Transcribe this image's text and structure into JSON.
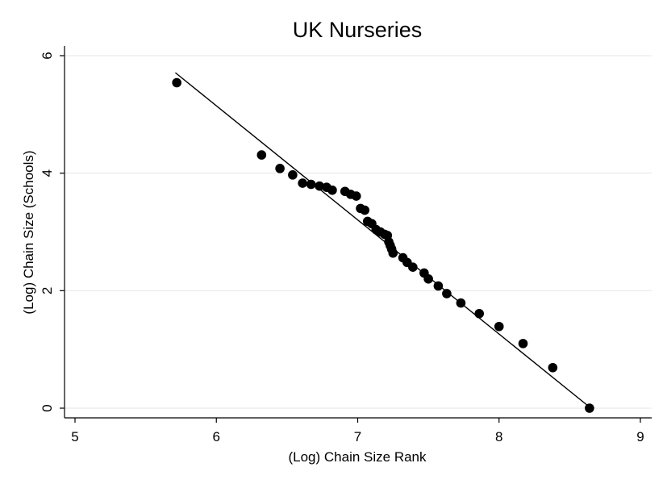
{
  "chart_data": {
    "type": "scatter",
    "title": "UK Nurseries",
    "xlabel": "(Log) Chain Size Rank",
    "ylabel": "(Log) Chain Size (Schools)",
    "xlim": [
      5,
      9
    ],
    "ylim": [
      0,
      6
    ],
    "xticks": [
      5,
      6,
      7,
      8,
      9
    ],
    "yticks": [
      0,
      2,
      4,
      6
    ],
    "grid": "horizontal",
    "legend": "none",
    "colors": {
      "points": "#000000",
      "fit_line": "#000000",
      "grid": "#e6e6e6"
    },
    "fit_line": {
      "x": [
        5.71,
        8.65
      ],
      "y": [
        5.71,
        0.0
      ]
    },
    "points": [
      {
        "x": 5.72,
        "y": 5.54
      },
      {
        "x": 6.32,
        "y": 4.31
      },
      {
        "x": 6.45,
        "y": 4.08
      },
      {
        "x": 6.54,
        "y": 3.97
      },
      {
        "x": 6.61,
        "y": 3.83
      },
      {
        "x": 6.67,
        "y": 3.81
      },
      {
        "x": 6.73,
        "y": 3.78
      },
      {
        "x": 6.78,
        "y": 3.76
      },
      {
        "x": 6.82,
        "y": 3.71
      },
      {
        "x": 6.91,
        "y": 3.69
      },
      {
        "x": 6.95,
        "y": 3.64
      },
      {
        "x": 6.99,
        "y": 3.61
      },
      {
        "x": 7.02,
        "y": 3.4
      },
      {
        "x": 7.05,
        "y": 3.37
      },
      {
        "x": 7.07,
        "y": 3.18
      },
      {
        "x": 7.1,
        "y": 3.14
      },
      {
        "x": 7.13,
        "y": 3.04
      },
      {
        "x": 7.16,
        "y": 3.0
      },
      {
        "x": 7.19,
        "y": 2.96
      },
      {
        "x": 7.21,
        "y": 2.94
      },
      {
        "x": 7.22,
        "y": 2.83
      },
      {
        "x": 7.23,
        "y": 2.77
      },
      {
        "x": 7.24,
        "y": 2.71
      },
      {
        "x": 7.25,
        "y": 2.64
      },
      {
        "x": 7.32,
        "y": 2.56
      },
      {
        "x": 7.35,
        "y": 2.48
      },
      {
        "x": 7.39,
        "y": 2.4
      },
      {
        "x": 7.47,
        "y": 2.3
      },
      {
        "x": 7.5,
        "y": 2.2
      },
      {
        "x": 7.57,
        "y": 2.08
      },
      {
        "x": 7.63,
        "y": 1.95
      },
      {
        "x": 7.73,
        "y": 1.79
      },
      {
        "x": 7.86,
        "y": 1.61
      },
      {
        "x": 8.0,
        "y": 1.39
      },
      {
        "x": 8.17,
        "y": 1.1
      },
      {
        "x": 8.38,
        "y": 0.69
      },
      {
        "x": 8.64,
        "y": 0.0
      }
    ]
  }
}
